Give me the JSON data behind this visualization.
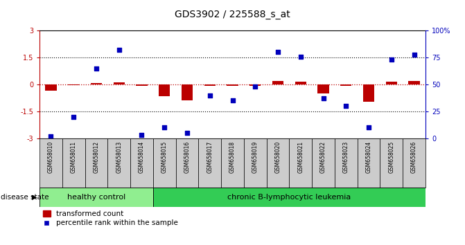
{
  "title": "GDS3902 / 225588_s_at",
  "samples": [
    "GSM658010",
    "GSM658011",
    "GSM658012",
    "GSM658013",
    "GSM658014",
    "GSM658015",
    "GSM658016",
    "GSM658017",
    "GSM658018",
    "GSM658019",
    "GSM658020",
    "GSM658021",
    "GSM658022",
    "GSM658023",
    "GSM658024",
    "GSM658025",
    "GSM658026"
  ],
  "red_values": [
    -0.35,
    -0.05,
    0.07,
    0.12,
    -0.06,
    -0.65,
    -0.88,
    -0.07,
    -0.08,
    -0.06,
    0.18,
    0.14,
    -0.48,
    -0.07,
    -0.95,
    0.14,
    0.2
  ],
  "blue_values": [
    2,
    20,
    65,
    82,
    3,
    10,
    5,
    40,
    35,
    48,
    80,
    76,
    37,
    30,
    10,
    73,
    78
  ],
  "ylim_left": [
    -3,
    3
  ],
  "ylim_right": [
    0,
    100
  ],
  "healthy_count": 5,
  "disease_label": "chronic B-lymphocytic leukemia",
  "healthy_label": "healthy control",
  "disease_state_label": "disease state",
  "legend_red": "transformed count",
  "legend_blue": "percentile rank within the sample",
  "bar_color": "#BB0000",
  "dot_color": "#0000BB",
  "healthy_bg": "#90EE90",
  "disease_bg": "#33CC55",
  "sample_bg": "#CCCCCC",
  "bar_width": 0.5,
  "dot_size": 22,
  "title_fontsize": 10,
  "tick_fontsize": 7,
  "label_fontsize": 7,
  "sample_fontsize": 5.5
}
